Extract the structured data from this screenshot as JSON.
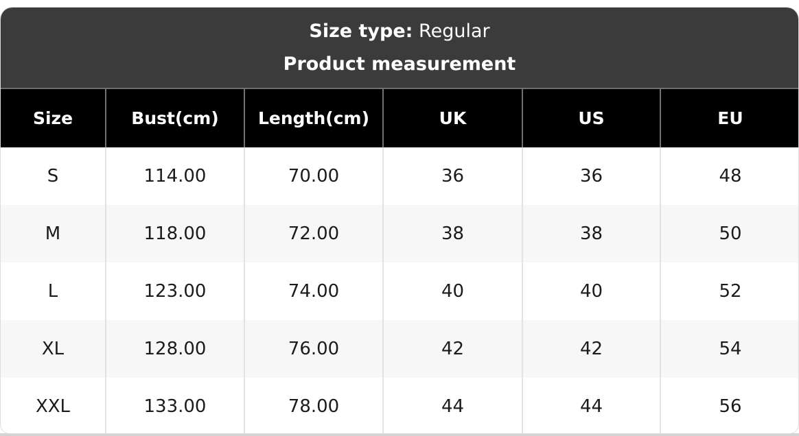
{
  "card": {
    "size_type_label": "Size type:",
    "size_type_value": "Regular",
    "subtitle": "Product measurement"
  },
  "table": {
    "columns": [
      "Size",
      "Bust(cm)",
      "Length(cm)",
      "UK",
      "US",
      "EU"
    ],
    "rows": [
      [
        "S",
        "114.00",
        "70.00",
        "36",
        "36",
        "48"
      ],
      [
        "M",
        "118.00",
        "72.00",
        "38",
        "38",
        "50"
      ],
      [
        "L",
        "123.00",
        "74.00",
        "40",
        "40",
        "52"
      ],
      [
        "XL",
        "128.00",
        "76.00",
        "42",
        "42",
        "54"
      ],
      [
        "XXL",
        "133.00",
        "78.00",
        "44",
        "44",
        "56"
      ]
    ]
  },
  "colors": {
    "title_section_bg": "#3b3b3b",
    "table_header_bg": "#000000",
    "alt_row_bg": "#f7f7f7",
    "header_separator": "#707070",
    "body_separator": "#e2e2e2",
    "card_border": "#dcdcdc",
    "bottom_band": "#d4d4d4"
  }
}
